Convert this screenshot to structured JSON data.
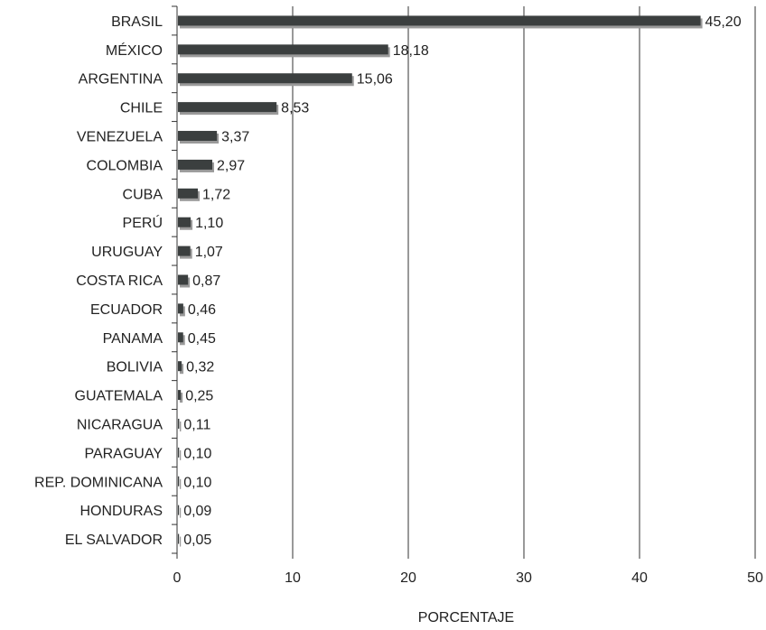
{
  "chart_data": {
    "type": "bar",
    "orientation": "horizontal",
    "categories": [
      "BRASIL",
      "MÉXICO",
      "ARGENTINA",
      "CHILE",
      "VENEZUELA",
      "COLOMBIA",
      "CUBA",
      "PERÚ",
      "URUGUAY",
      "COSTA RICA",
      "ECUADOR",
      "PANAMA",
      "BOLIVIA",
      "GUATEMALA",
      "NICARAGUA",
      "PARAGUAY",
      "REP. DOMINICANA",
      "HONDURAS",
      "EL SALVADOR"
    ],
    "values": [
      45.2,
      18.18,
      15.06,
      8.53,
      3.37,
      2.97,
      1.72,
      1.1,
      1.07,
      0.87,
      0.46,
      0.45,
      0.32,
      0.25,
      0.11,
      0.1,
      0.1,
      0.09,
      0.05
    ],
    "value_labels": [
      "45,20",
      "18,18",
      "15,06",
      "8,53",
      "3,37",
      "2,97",
      "1,72",
      "1,10",
      "1,07",
      "0,87",
      "0,46",
      "0,45",
      "0,32",
      "0,25",
      "0,11",
      "0,10",
      "0,10",
      "0,09",
      "0,05"
    ],
    "title": "",
    "xlabel": "PORCENTAJE",
    "ylabel": "",
    "xlim": [
      0,
      50
    ],
    "x_ticks": [
      0,
      10,
      20,
      30,
      40,
      50
    ],
    "x_tick_labels": [
      "0",
      "10",
      "20",
      "30",
      "40",
      "50"
    ],
    "grid": "vertical",
    "legend": "none",
    "colors": {
      "bar": "#3b3f3f",
      "bar_shadow": "#9a9a9a",
      "grid": "#333333",
      "axis": "#333333"
    }
  }
}
